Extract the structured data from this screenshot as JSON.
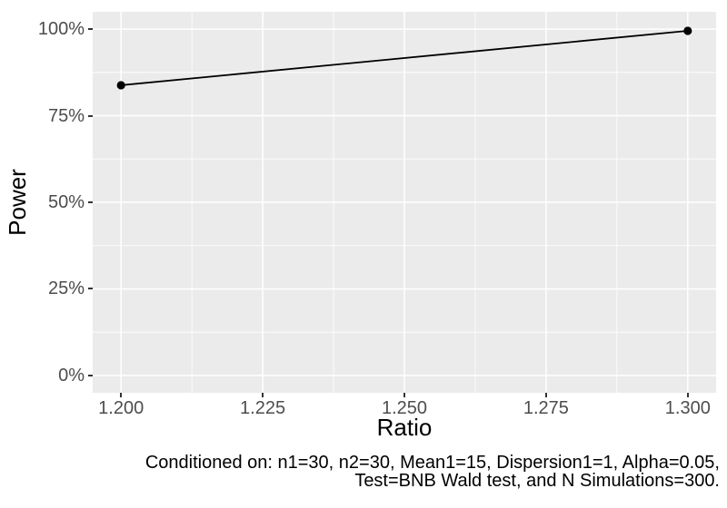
{
  "chart_data": {
    "type": "line",
    "title": "",
    "xlabel": "Ratio",
    "ylabel": "Power",
    "series": [
      {
        "name": "Power",
        "x": [
          1.2,
          1.3
        ],
        "y_percent": [
          83.8,
          99.5
        ]
      }
    ],
    "x_ticks": [
      {
        "value": 1.2,
        "label": "1.200"
      },
      {
        "value": 1.225,
        "label": "1.225"
      },
      {
        "value": 1.25,
        "label": "1.250"
      },
      {
        "value": 1.275,
        "label": "1.275"
      },
      {
        "value": 1.3,
        "label": "1.300"
      }
    ],
    "y_ticks": [
      {
        "value": 0,
        "label": "0%"
      },
      {
        "value": 25,
        "label": "25%"
      },
      {
        "value": 50,
        "label": "50%"
      },
      {
        "value": 75,
        "label": "75%"
      },
      {
        "value": 100,
        "label": "100%"
      }
    ],
    "x_domain": [
      1.2,
      1.3
    ],
    "y_domain_percent": [
      0,
      100
    ],
    "domain_expansion": 0.05,
    "grid": "major+minor",
    "legend_position": "none",
    "colors": {
      "figure_bg": "#FFFFFF",
      "panel_bg": "#EBEBEB",
      "grid": "#FFFFFF",
      "line": "#000000",
      "point": "#000000",
      "tick_mark": "#333333",
      "tick_label": "#4D4D4D",
      "axis_title": "#000000",
      "caption": "#000000"
    }
  },
  "caption": {
    "line1": "Conditioned on: n1=30, n2=30, Mean1=15, Dispersion1=1, Alpha=0.05,",
    "line2": "Test=BNB Wald test, and N Simulations=300."
  }
}
